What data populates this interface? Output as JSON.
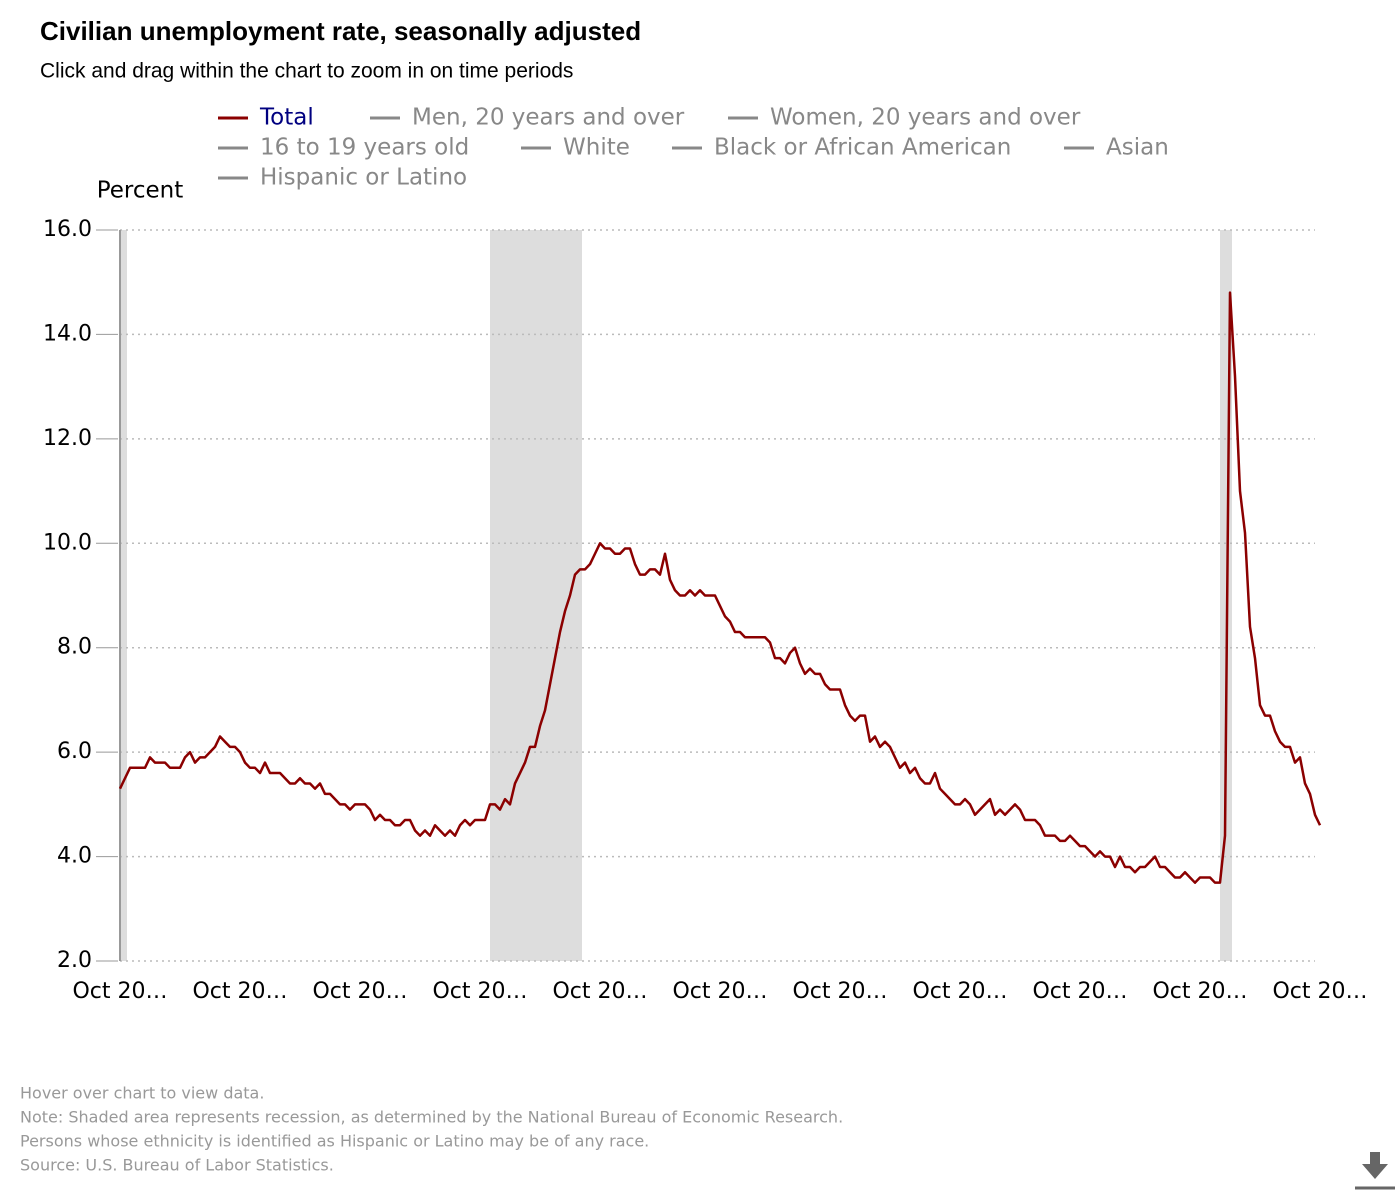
{
  "chart_data": {
    "type": "line",
    "title": "Civilian unemployment rate, seasonally adjusted",
    "subtitle": "Click and drag within the chart to zoom in on time periods",
    "y_label": "Percent",
    "categories": [
      "Oct 20…",
      null,
      null,
      null,
      null,
      null,
      null,
      null,
      null,
      null,
      null,
      null,
      null,
      null,
      null,
      null,
      null,
      null,
      null,
      null,
      null,
      null,
      null,
      null,
      "Oct 20…",
      null,
      null,
      null,
      null,
      null,
      null,
      null,
      null,
      null,
      null,
      null,
      null,
      null,
      null,
      null,
      null,
      null,
      null,
      null,
      null,
      null,
      null,
      null,
      "Oct 20…",
      null,
      null,
      null,
      null,
      null,
      null,
      null,
      null,
      null,
      null,
      null,
      null,
      null,
      null,
      null,
      null,
      null,
      null,
      null,
      null,
      null,
      null,
      null,
      "Oct 20…",
      null,
      null,
      null,
      null,
      null,
      null,
      null,
      null,
      null,
      null,
      null,
      null,
      null,
      null,
      null,
      null,
      null,
      null,
      null,
      null,
      null,
      null,
      null,
      "Oct 20…",
      null,
      null,
      null,
      null,
      null,
      null,
      null,
      null,
      null,
      null,
      null,
      null,
      null,
      null,
      null,
      null,
      null,
      null,
      null,
      null,
      null,
      null,
      null,
      "Oct 20…",
      null,
      null,
      null,
      null,
      null,
      null,
      null,
      null,
      null,
      null,
      null,
      null,
      null,
      null,
      null,
      null,
      null,
      null,
      null,
      null,
      null,
      null,
      null,
      "Oct 20…",
      null,
      null,
      null,
      null,
      null,
      null,
      null,
      null,
      null,
      null,
      null,
      null,
      null,
      null,
      null,
      null,
      null,
      null,
      null,
      null,
      null,
      null,
      null,
      "Oct 20…",
      null,
      null,
      null,
      null,
      null,
      null,
      null,
      null,
      null,
      null,
      null,
      null,
      null,
      null,
      null,
      null,
      null,
      null,
      null,
      null,
      null,
      null,
      null,
      "Oct 20…",
      null,
      null,
      null,
      null,
      null,
      null,
      null,
      null,
      null,
      null,
      null,
      null,
      null,
      null,
      null,
      null,
      null,
      null,
      null,
      null,
      null,
      null,
      null,
      "Oct 20…",
      null,
      null,
      null,
      null,
      null,
      null,
      null,
      null,
      null,
      null,
      null,
      null,
      null,
      null,
      null,
      null,
      null,
      null,
      null,
      null,
      null,
      null,
      null,
      "Oct 20…"
    ],
    "series": [
      {
        "name": "Total",
        "color": "#8b0000",
        "label_color": "#000080",
        "values": [
          5.3,
          5.5,
          5.7,
          5.7,
          5.7,
          5.7,
          5.9,
          5.8,
          5.8,
          5.8,
          5.7,
          5.7,
          5.7,
          5.9,
          6.0,
          5.8,
          5.9,
          5.9,
          6.0,
          6.1,
          6.3,
          6.2,
          6.1,
          6.1,
          6.0,
          5.8,
          5.7,
          5.7,
          5.6,
          5.8,
          5.6,
          5.6,
          5.6,
          5.5,
          5.4,
          5.4,
          5.5,
          5.4,
          5.4,
          5.3,
          5.4,
          5.2,
          5.2,
          5.1,
          5.0,
          5.0,
          4.9,
          5.0,
          5.0,
          5.0,
          4.9,
          4.7,
          4.8,
          4.7,
          4.7,
          4.6,
          4.6,
          4.7,
          4.7,
          4.5,
          4.4,
          4.5,
          4.4,
          4.6,
          4.5,
          4.4,
          4.5,
          4.4,
          4.6,
          4.7,
          4.6,
          4.7,
          4.7,
          4.7,
          5.0,
          5.0,
          4.9,
          5.1,
          5.0,
          5.4,
          5.6,
          5.8,
          6.1,
          6.1,
          6.5,
          6.8,
          7.3,
          7.8,
          8.3,
          8.7,
          9.0,
          9.4,
          9.5,
          9.5,
          9.6,
          9.8,
          10.0,
          9.9,
          9.9,
          9.8,
          9.8,
          9.9,
          9.9,
          9.6,
          9.4,
          9.4,
          9.5,
          9.5,
          9.4,
          9.8,
          9.3,
          9.1,
          9.0,
          9.0,
          9.1,
          9.0,
          9.1,
          9.0,
          9.0,
          9.0,
          8.8,
          8.6,
          8.5,
          8.3,
          8.3,
          8.2,
          8.2,
          8.2,
          8.2,
          8.2,
          8.1,
          7.8,
          7.8,
          7.7,
          7.9,
          8.0,
          7.7,
          7.5,
          7.6,
          7.5,
          7.5,
          7.3,
          7.2,
          7.2,
          7.2,
          6.9,
          6.7,
          6.6,
          6.7,
          6.7,
          6.2,
          6.3,
          6.1,
          6.2,
          6.1,
          5.9,
          5.7,
          5.8,
          5.6,
          5.7,
          5.5,
          5.4,
          5.4,
          5.6,
          5.3,
          5.2,
          5.1,
          5.0,
          5.0,
          5.1,
          5.0,
          4.8,
          4.9,
          5.0,
          5.1,
          4.8,
          4.9,
          4.8,
          4.9,
          5.0,
          4.9,
          4.7,
          4.7,
          4.7,
          4.6,
          4.4,
          4.4,
          4.4,
          4.3,
          4.3,
          4.4,
          4.3,
          4.2,
          4.2,
          4.1,
          4.0,
          4.1,
          4.0,
          4.0,
          3.8,
          4.0,
          3.8,
          3.8,
          3.7,
          3.8,
          3.8,
          3.9,
          4.0,
          3.8,
          3.8,
          3.7,
          3.6,
          3.6,
          3.7,
          3.6,
          3.5,
          3.6,
          3.6,
          3.6,
          3.5,
          3.5,
          4.4,
          14.8,
          13.2,
          11.0,
          10.2,
          8.4,
          7.8,
          6.9,
          6.7,
          6.7,
          6.4,
          6.2,
          6.1,
          6.1,
          5.8,
          5.9,
          5.4,
          5.2,
          4.8,
          4.6
        ]
      }
    ],
    "inactive_series": [
      "Men, 20 years and over",
      "Women, 20 years and over",
      "16 to 19 years old",
      "White",
      "Black or African American",
      "Asian",
      "Hispanic or Latino"
    ],
    "inactive_color": "#888888",
    "shaded_ranges": [
      [
        0,
        1
      ],
      [
        74,
        92
      ],
      [
        220,
        222
      ]
    ],
    "shade_color": "#dddddd",
    "ylim": [
      2,
      16
    ],
    "yticks": [
      {
        "value": 2,
        "label": "2.0"
      },
      {
        "value": 4,
        "label": "4.0"
      },
      {
        "value": 6,
        "label": "6.0"
      },
      {
        "value": 8,
        "label": "8.0"
      },
      {
        "value": 10,
        "label": "10.0"
      },
      {
        "value": 12,
        "label": "12.0"
      },
      {
        "value": 14,
        "label": "14.0"
      },
      {
        "value": 16,
        "label": "16.0"
      }
    ],
    "grid": true,
    "notes": [
      "Hover over chart to view data.",
      "Note: Shaded area represents recession, as determined by the National Bureau of Economic Research.",
      "Persons whose ethnicity is identified as Hispanic or Latino may be of any race.",
      "Source: U.S. Bureau of Labor Statistics."
    ]
  }
}
